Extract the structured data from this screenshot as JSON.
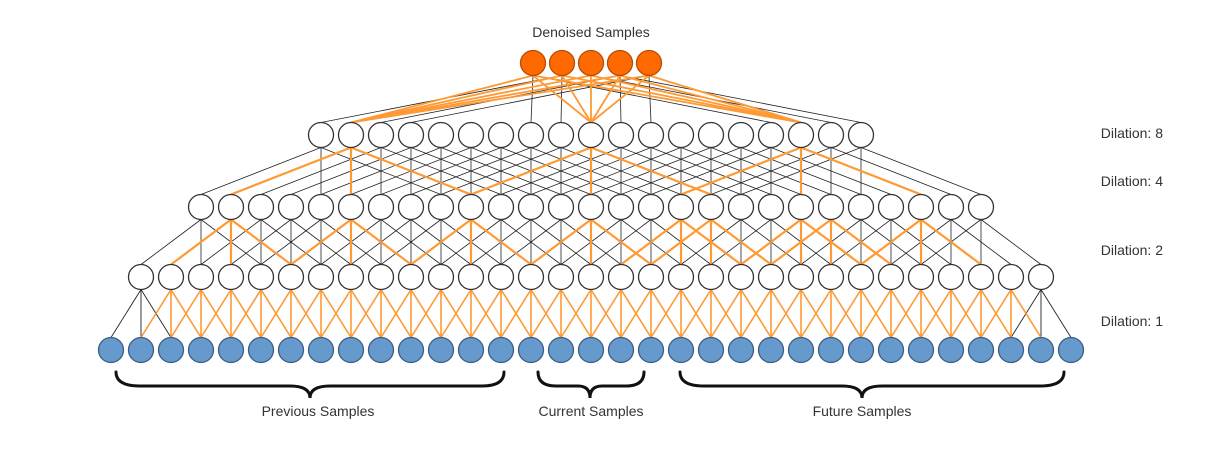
{
  "title": "Denoised Samples",
  "layers": [
    {
      "key": "output",
      "count": 5,
      "label": ""
    },
    {
      "key": "l4",
      "count": 19,
      "label": "Dilation: 8"
    },
    {
      "key": "l3",
      "count": 27,
      "label": "Dilation: 4"
    },
    {
      "key": "l2",
      "count": 31,
      "label": "Dilation: 2"
    },
    {
      "key": "input",
      "count": 33,
      "label": "Dilation: 1"
    }
  ],
  "groups": [
    {
      "label": "Previous Samples"
    },
    {
      "label": "Current Samples"
    },
    {
      "label": "Future Samples"
    }
  ],
  "colors": {
    "output_fill": "#ff6a00",
    "output_stroke": "#b84b00",
    "input_fill": "#6699cc",
    "input_stroke": "#3a5f87",
    "hidden_fill": "#ffffff",
    "hidden_stroke": "#333333",
    "edge": "#222222",
    "highlight_edge": "#ff9933"
  }
}
